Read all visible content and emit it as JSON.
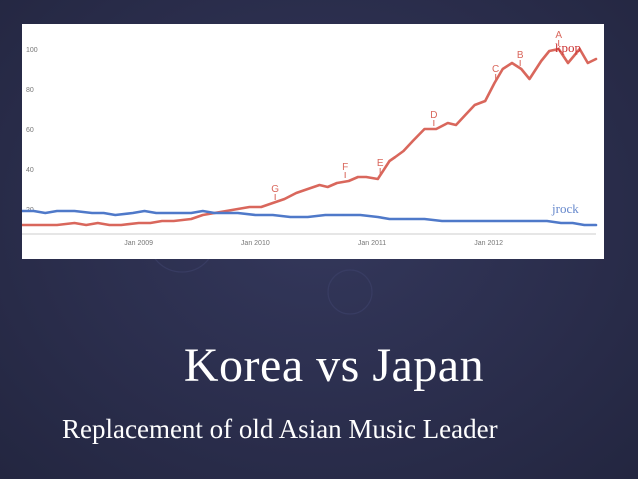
{
  "slide": {
    "title": "Korea vs Japan",
    "subtitle": "Replacement of old Asian Music Leader",
    "background_color": "#2b2e4d",
    "text_color": "#ffffff"
  },
  "chart_data": {
    "type": "line",
    "title": "",
    "xlabel": "",
    "ylabel": "",
    "xlim": [
      2008.0,
      2012.92
    ],
    "ylim": [
      10,
      110
    ],
    "y_ticks": [
      20,
      40,
      60,
      80,
      100
    ],
    "x_ticks": [
      {
        "label": "Jan 2009",
        "x": 2009.0
      },
      {
        "label": "Jan 2010",
        "x": 2010.0
      },
      {
        "label": "Jan 2011",
        "x": 2011.0
      },
      {
        "label": "Jan 2012",
        "x": 2012.0
      }
    ],
    "grid": false,
    "series": [
      {
        "name": "kpop",
        "color": "#cc3333",
        "line_color": "#d9675c",
        "x": [
          2008.0,
          2008.15,
          2008.3,
          2008.45,
          2008.55,
          2008.65,
          2008.75,
          2008.85,
          2009.0,
          2009.1,
          2009.2,
          2009.3,
          2009.45,
          2009.55,
          2009.65,
          2009.75,
          2009.85,
          2009.95,
          2010.05,
          2010.15,
          2010.25,
          2010.35,
          2010.45,
          2010.55,
          2010.62,
          2010.7,
          2010.8,
          2010.88,
          2010.95,
          2011.05,
          2011.15,
          2011.2,
          2011.27,
          2011.35,
          2011.45,
          2011.55,
          2011.65,
          2011.72,
          2011.8,
          2011.88,
          2011.97,
          2012.05,
          2012.12,
          2012.2,
          2012.28,
          2012.35,
          2012.45,
          2012.52,
          2012.6,
          2012.68,
          2012.78,
          2012.85,
          2012.92
        ],
        "y": [
          12,
          12,
          12,
          13,
          12,
          13,
          12,
          12,
          13,
          13,
          14,
          14,
          15,
          17,
          18,
          19,
          20,
          21,
          21,
          23,
          25,
          28,
          30,
          32,
          31,
          33,
          34,
          36,
          36,
          35,
          44,
          46,
          49,
          54,
          60,
          60,
          63,
          62,
          67,
          72,
          74,
          83,
          90,
          93,
          90,
          85,
          94,
          99,
          100,
          93,
          100,
          93,
          95
        ]
      },
      {
        "name": "jrock",
        "color": "#6688cc",
        "line_color": "#4f79c9",
        "x": [
          2008.0,
          2008.1,
          2008.2,
          2008.3,
          2008.45,
          2008.6,
          2008.7,
          2008.8,
          2008.95,
          2009.05,
          2009.15,
          2009.3,
          2009.45,
          2009.55,
          2009.65,
          2009.75,
          2009.85,
          2010.0,
          2010.15,
          2010.3,
          2010.45,
          2010.6,
          2010.75,
          2010.9,
          2011.05,
          2011.15,
          2011.3,
          2011.45,
          2011.6,
          2011.75,
          2011.9,
          2012.05,
          2012.2,
          2012.35,
          2012.5,
          2012.62,
          2012.72,
          2012.82,
          2012.92
        ],
        "y": [
          19,
          19,
          18,
          19,
          19,
          18,
          18,
          17,
          18,
          19,
          18,
          18,
          18,
          19,
          18,
          18,
          18,
          17,
          17,
          16,
          16,
          17,
          17,
          17,
          16,
          15,
          15,
          15,
          14,
          14,
          14,
          14,
          14,
          14,
          14,
          13,
          13,
          12,
          12
        ]
      }
    ],
    "annotations": [
      {
        "label": "G",
        "x": 2010.17,
        "y": 23
      },
      {
        "label": "F",
        "x": 2010.77,
        "y": 34
      },
      {
        "label": "E",
        "x": 2011.07,
        "y": 36
      },
      {
        "label": "D",
        "x": 2011.53,
        "y": 60
      },
      {
        "label": "C",
        "x": 2012.06,
        "y": 83
      },
      {
        "label": "B",
        "x": 2012.27,
        "y": 90
      },
      {
        "label": "A",
        "x": 2012.6,
        "y": 100
      }
    ]
  }
}
